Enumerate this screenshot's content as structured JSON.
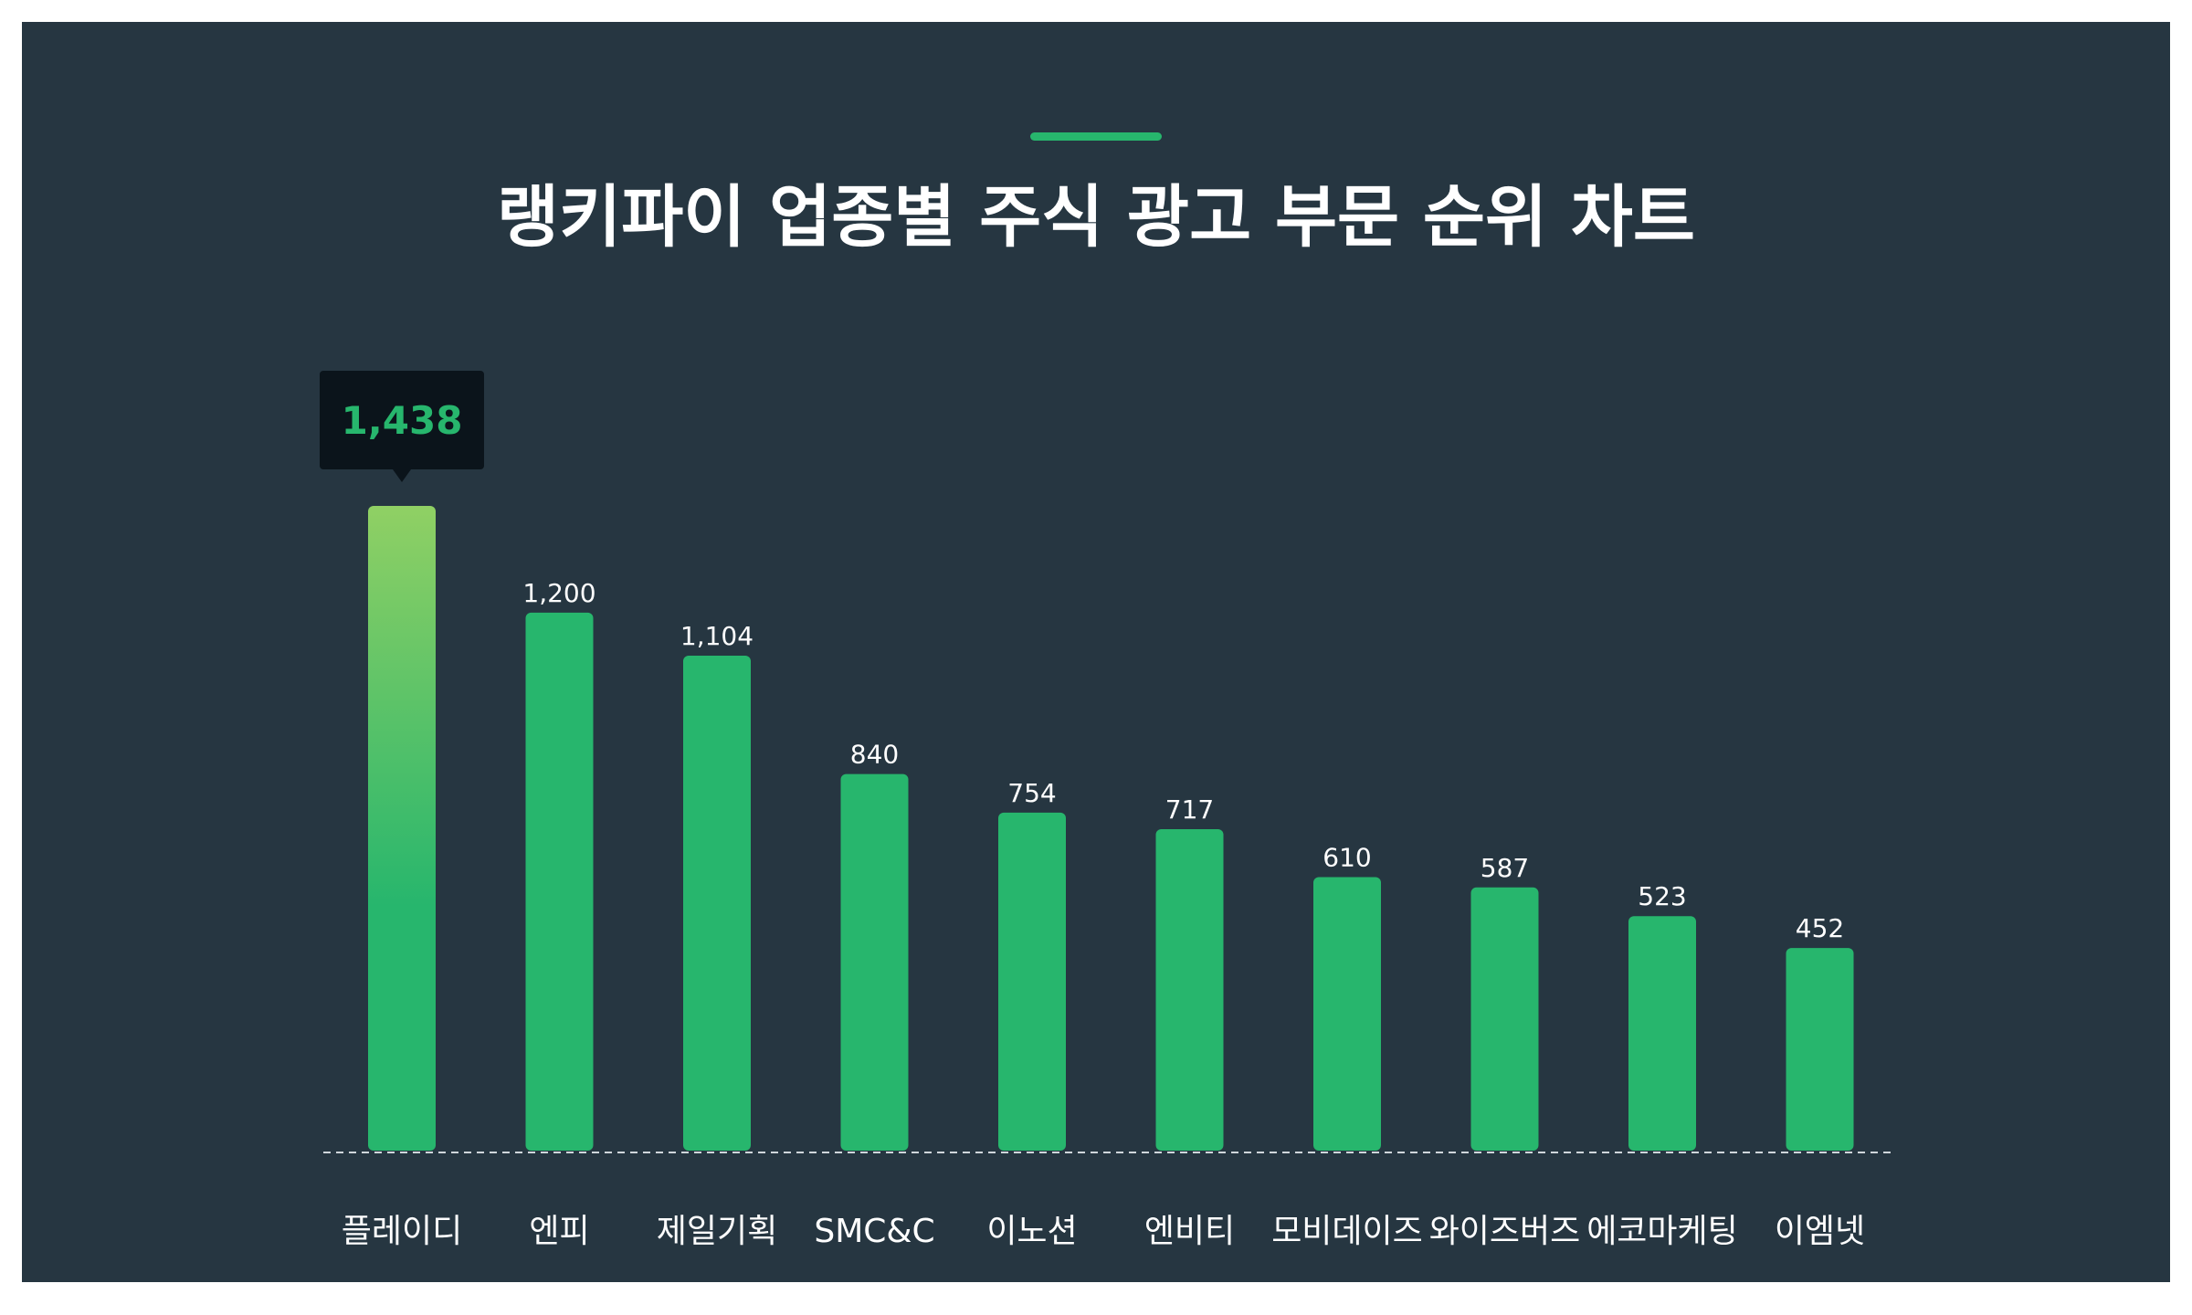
{
  "title": "랭키파이 업종별 주식 광고 부문 순위 차트",
  "colors": {
    "background": "#263641",
    "bar": "#27b66d",
    "bar_highlight_top": "#90d064",
    "tooltip_bg": "#0b141b",
    "tooltip_text": "#27b66d",
    "text": "#ffffff",
    "baseline": "#cfd6db"
  },
  "chart_data": {
    "type": "bar",
    "title": "랭키파이 업종별 주식 광고 부문 순위 차트",
    "categories": [
      "플레이디",
      "엔피",
      "제일기획",
      "SMC&C",
      "이노션",
      "엔비티",
      "모비데이즈",
      "와이즈버즈",
      "에코마케팅",
      "이엠넷"
    ],
    "values": [
      1438,
      1200,
      1104,
      840,
      754,
      717,
      610,
      587,
      523,
      452
    ],
    "value_labels": [
      "1,438",
      "1,200",
      "1,104",
      "840",
      "754",
      "717",
      "610",
      "587",
      "523",
      "452"
    ],
    "highlight_index": 0,
    "ylim": [
      0,
      1438
    ],
    "grid": false,
    "legend": "none"
  }
}
